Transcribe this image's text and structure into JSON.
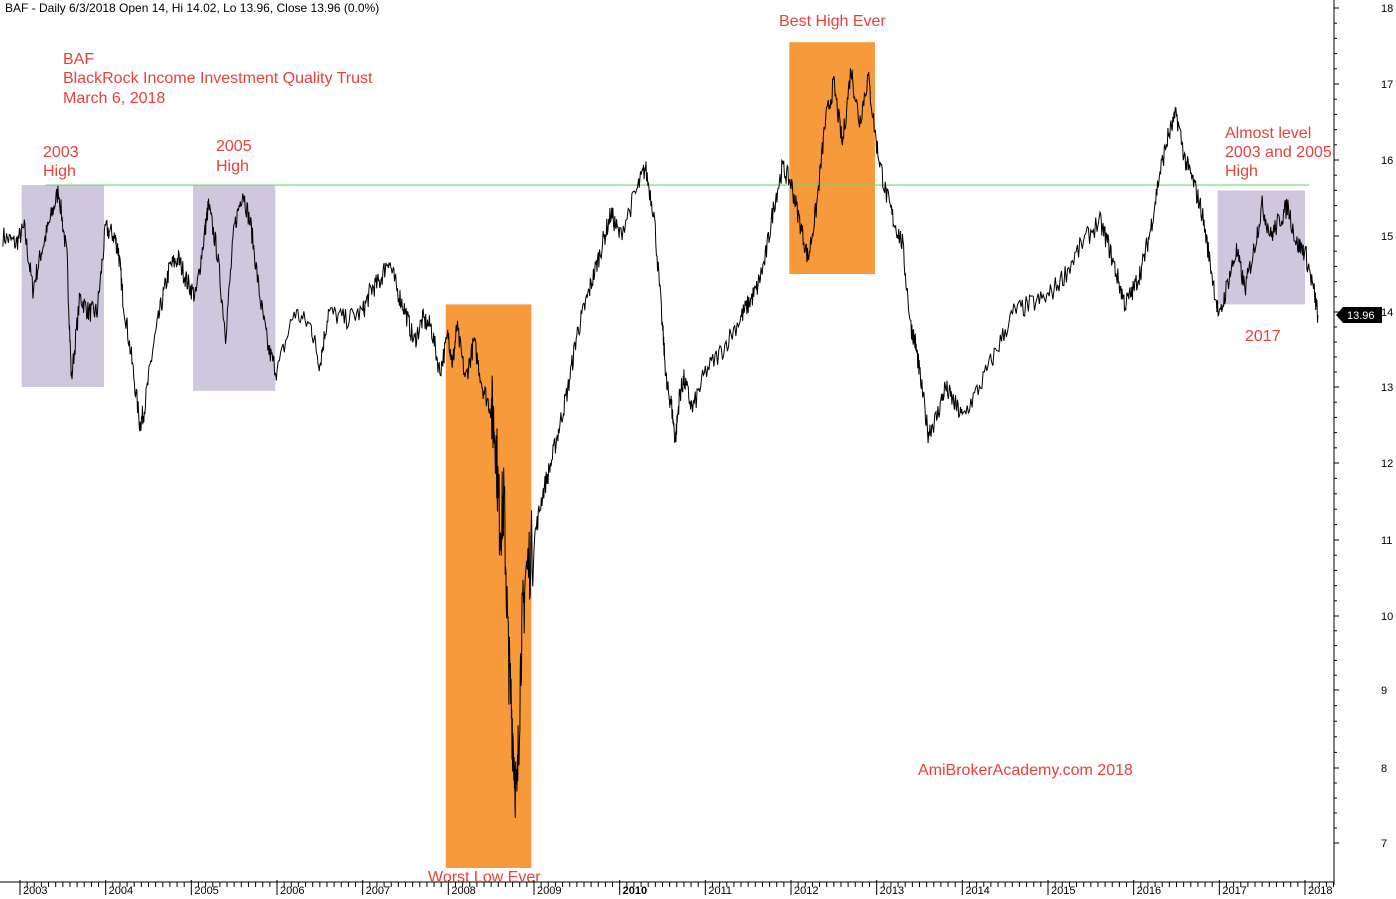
{
  "header": {
    "info_line": "BAF - Daily 6/3/2018 Open 14, Hi 14.02, Lo 13.96, Close 13.96 (0.0%)"
  },
  "colors": {
    "background": "#ffffff",
    "price_line": "#000000",
    "resistance_line": "#66dd66",
    "annotation_text": "#e8403a",
    "high_zone": "#cfc7dd",
    "extreme_zone": "#f79a3c",
    "price_tag_bg": "#000000"
  },
  "annotations": {
    "title_lines": [
      "BAF",
      "BlackRock Income Investment Quality Trust",
      "March 6, 2018"
    ],
    "high_2003": [
      "2003",
      "High"
    ],
    "high_2005": [
      "2005",
      "High"
    ],
    "best_high": "Best High Ever",
    "worst_low": "Worst Low Ever",
    "almost_level": [
      "Almost level",
      "2003 and 2005",
      "High"
    ],
    "label_2017": "2017",
    "watermark": "AmiBrokerAcademy.com  2018"
  },
  "price_tag": "13.96",
  "chart_data": {
    "type": "line",
    "title": "",
    "xlabel": "",
    "ylabel": "",
    "x_axis": {
      "type": "date",
      "tick_labels": [
        "2003",
        "2004",
        "2005",
        "2006",
        "2007",
        "2008",
        "2009",
        "2010",
        "2011",
        "2012",
        "2013",
        "2014",
        "2015",
        "2016",
        "2017",
        "2018"
      ],
      "bold_labels": [
        "2010"
      ],
      "range": [
        2002.8,
        2018.2
      ]
    },
    "y_axis": {
      "position": "right",
      "ylim": [
        6.6,
        18.1
      ],
      "tick_labels": [
        "7",
        "8",
        "9",
        "10",
        "11",
        "12",
        "13",
        "14",
        "15",
        "16",
        "17",
        "18"
      ]
    },
    "grid": false,
    "legend": "none",
    "resistance_level": {
      "value": 15.67,
      "x_start": 2003.3,
      "x_end": 2018.05
    },
    "highlight_zones": [
      {
        "label": "2003 High",
        "x0": 2003.02,
        "x1": 2003.98,
        "y0": 13.0,
        "y1": 15.67,
        "kind": "high"
      },
      {
        "label": "2005 High",
        "x0": 2005.02,
        "x1": 2005.98,
        "y0": 12.95,
        "y1": 15.67,
        "kind": "high"
      },
      {
        "label": "Worst Low Ever",
        "x0": 2007.97,
        "x1": 2008.97,
        "y0": 6.6,
        "y1": 14.1,
        "kind": "extreme"
      },
      {
        "label": "Best High Ever",
        "x0": 2011.98,
        "x1": 2012.98,
        "y0": 14.5,
        "y1": 17.55,
        "kind": "extreme"
      },
      {
        "label": "2017",
        "x0": 2016.98,
        "x1": 2018.0,
        "y0": 14.1,
        "y1": 15.6,
        "kind": "high"
      }
    ],
    "series": [
      {
        "values_x": [
          2002.8,
          2002.95,
          2003.05,
          2003.15,
          2003.25,
          2003.35,
          2003.45,
          2003.55,
          2003.6,
          2003.7,
          2003.8,
          2003.9,
          2004.0,
          2004.1,
          2004.15,
          2004.2,
          2004.3,
          2004.4,
          2004.45,
          2004.55,
          2004.65,
          2004.75,
          2004.85,
          2004.95,
          2005.05,
          2005.15,
          2005.2,
          2005.3,
          2005.4,
          2005.5,
          2005.6,
          2005.7,
          2005.8,
          2005.9,
          2006.0,
          2006.2,
          2006.4,
          2006.5,
          2006.6,
          2006.8,
          2007.0,
          2007.1,
          2007.2,
          2007.3,
          2007.4,
          2007.5,
          2007.6,
          2007.7,
          2007.8,
          2007.9,
          2008.0,
          2008.05,
          2008.1,
          2008.2,
          2008.3,
          2008.4,
          2008.5,
          2008.55,
          2008.6,
          2008.65,
          2008.7,
          2008.75,
          2008.8,
          2008.85,
          2008.9,
          2009.0,
          2009.1,
          2009.2,
          2009.3,
          2009.4,
          2009.5,
          2009.6,
          2009.7,
          2009.8,
          2009.9,
          2010.0,
          2010.2,
          2010.3,
          2010.4,
          2010.5,
          2010.55,
          2010.6,
          2010.65,
          2010.7,
          2010.75,
          2010.85,
          2011.0,
          2011.2,
          2011.4,
          2011.5,
          2011.6,
          2011.7,
          2011.8,
          2011.9,
          2012.0,
          2012.1,
          2012.2,
          2012.3,
          2012.4,
          2012.5,
          2012.6,
          2012.7,
          2012.8,
          2012.9,
          2013.0,
          2013.1,
          2013.2,
          2013.3,
          2013.4,
          2013.45,
          2013.5,
          2013.6,
          2013.7,
          2013.8,
          2013.9,
          2014.0,
          2014.2,
          2014.4,
          2014.6,
          2014.8,
          2015.0,
          2015.2,
          2015.4,
          2015.6,
          2015.7,
          2015.8,
          2015.9,
          2016.0,
          2016.1,
          2016.2,
          2016.3,
          2016.4,
          2016.5,
          2016.6,
          2016.7,
          2016.8,
          2016.9,
          2017.0,
          2017.1,
          2017.2,
          2017.3,
          2017.4,
          2017.5,
          2017.6,
          2017.7,
          2017.8,
          2017.9,
          2018.0,
          2018.1,
          2018.15
        ],
        "values_y": [
          15.0,
          14.9,
          15.1,
          14.3,
          14.8,
          15.2,
          15.6,
          14.7,
          13.1,
          14.2,
          14.0,
          14.0,
          15.1,
          15.0,
          14.8,
          14.2,
          13.4,
          12.5,
          12.7,
          13.5,
          14.1,
          14.6,
          14.7,
          14.4,
          14.2,
          15.0,
          15.4,
          14.8,
          13.7,
          15.1,
          15.6,
          15.1,
          14.2,
          13.5,
          13.2,
          14.0,
          13.8,
          13.3,
          14.0,
          13.9,
          14.0,
          14.3,
          14.4,
          14.7,
          14.3,
          14.0,
          13.6,
          13.9,
          13.8,
          13.2,
          13.7,
          13.3,
          13.8,
          13.1,
          13.6,
          13.0,
          12.7,
          12.4,
          11.2,
          11.5,
          9.5,
          8.5,
          7.5,
          9.6,
          10.5,
          11.0,
          11.6,
          12.0,
          12.5,
          13.0,
          13.7,
          14.1,
          14.5,
          14.9,
          15.3,
          15.0,
          15.6,
          15.9,
          15.3,
          13.8,
          13.0,
          12.8,
          12.3,
          12.9,
          13.1,
          12.7,
          13.2,
          13.5,
          13.9,
          14.1,
          14.3,
          14.7,
          15.4,
          15.9,
          15.7,
          15.2,
          14.7,
          15.4,
          16.5,
          17.0,
          16.2,
          17.2,
          16.5,
          17.1,
          16.2,
          15.6,
          15.2,
          14.9,
          13.8,
          13.6,
          13.2,
          12.4,
          12.6,
          13.0,
          12.8,
          12.6,
          13.0,
          13.5,
          14.0,
          14.1,
          14.2,
          14.5,
          14.9,
          15.2,
          14.9,
          14.5,
          14.1,
          14.3,
          14.6,
          15.1,
          15.8,
          16.3,
          16.6,
          16.0,
          15.7,
          15.3,
          14.6,
          13.9,
          14.4,
          14.8,
          14.3,
          14.8,
          15.4,
          15.0,
          15.2,
          15.4,
          14.9,
          14.8,
          14.3,
          13.96
        ]
      }
    ]
  }
}
